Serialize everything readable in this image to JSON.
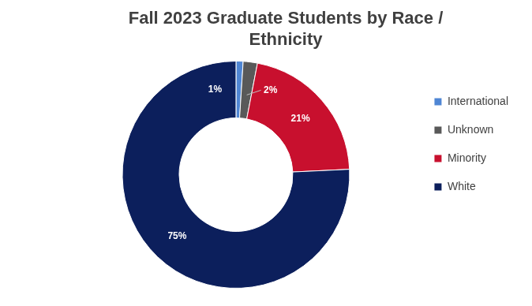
{
  "chart_data": {
    "type": "doughnut",
    "title": "Fall 2023 Graduate Students by Race / Ethnicity",
    "categories": [
      "International",
      "Unknown",
      "Minority",
      "White"
    ],
    "values": [
      1,
      2,
      21,
      75
    ],
    "value_labels": [
      "1%",
      "2%",
      "21%",
      "75%"
    ],
    "colors": [
      "#4f86d4",
      "#595959",
      "#c8102e",
      "#0c1f5c"
    ],
    "data_labels": true,
    "legend": "right"
  }
}
